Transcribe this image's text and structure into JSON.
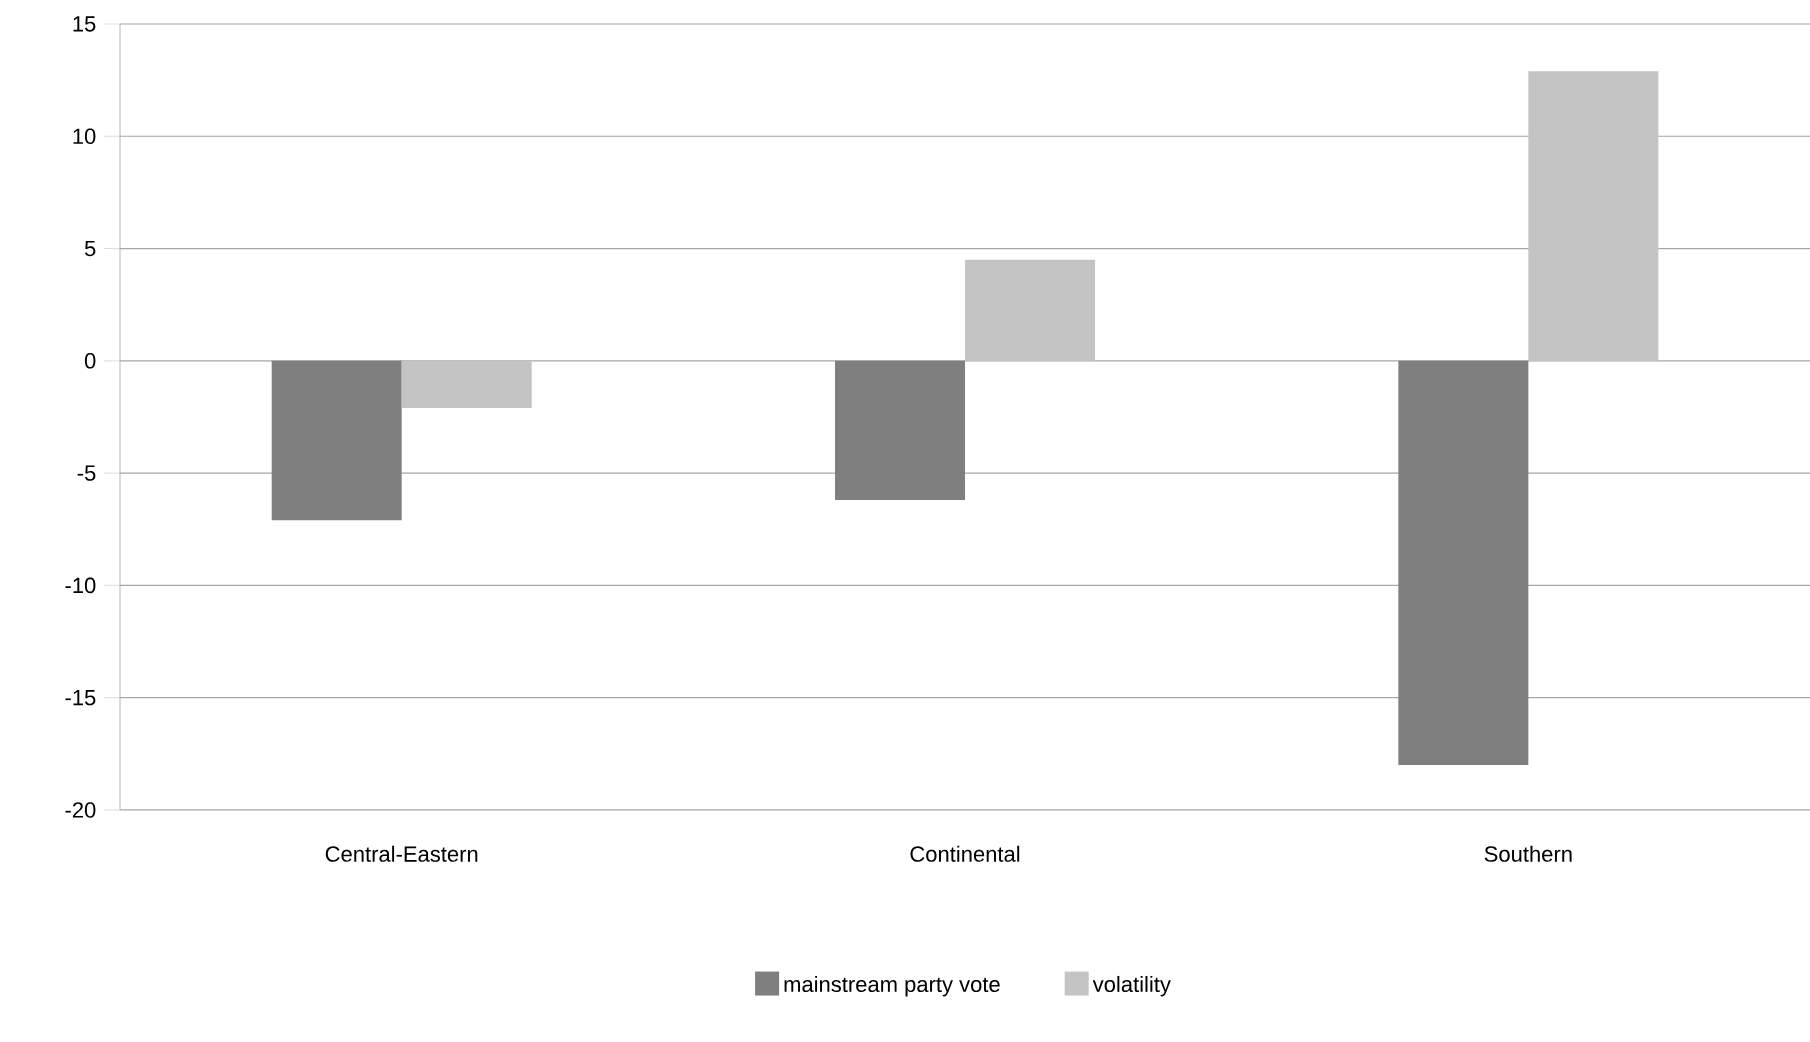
{
  "chart_data": {
    "type": "bar",
    "categories": [
      "Central-Eastern",
      "Continental",
      "Southern"
    ],
    "series": [
      {
        "name": "mainstream party vote",
        "color": "#7f7f7f",
        "values": [
          -7.1,
          -6.2,
          -18.0
        ]
      },
      {
        "name": "volatility",
        "color": "#c4c4c4",
        "values": [
          -2.1,
          4.5,
          12.9
        ]
      }
    ],
    "ylim": [
      -20,
      15
    ],
    "yticks": [
      -20,
      -15,
      -10,
      -5,
      0,
      5,
      10,
      15
    ],
    "grid": "y",
    "legend": "bottom"
  }
}
